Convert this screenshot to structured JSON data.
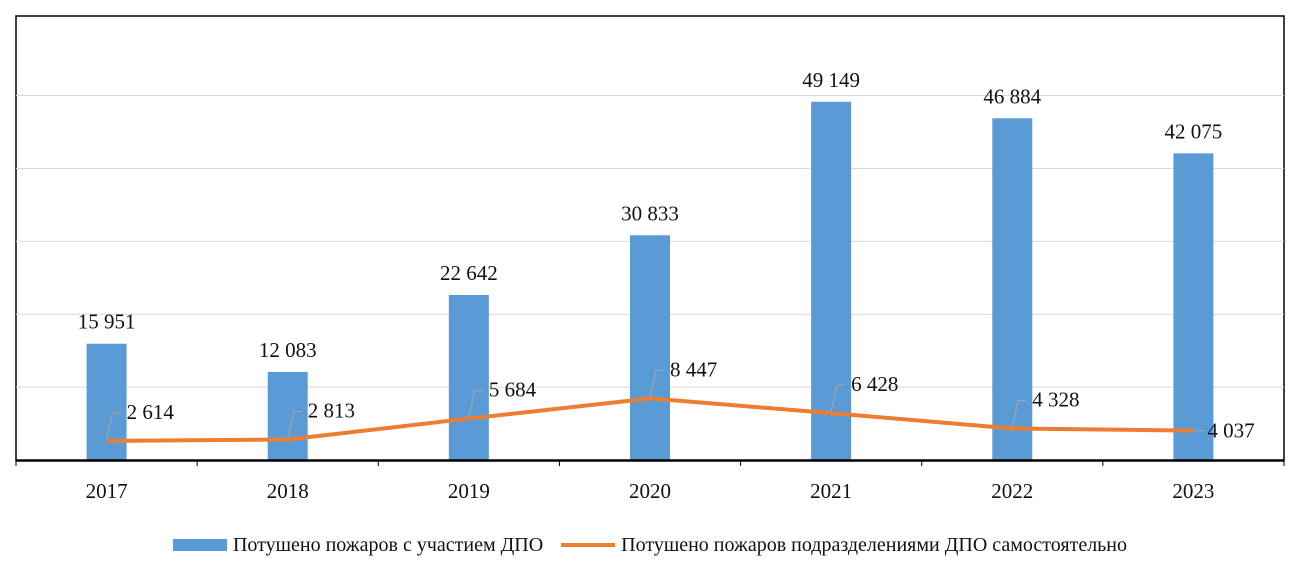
{
  "chart_data": {
    "type": "bar",
    "categories": [
      "2017",
      "2018",
      "2019",
      "2020",
      "2021",
      "2022",
      "2023"
    ],
    "series": [
      {
        "name": "Потушено пожаров с участием ДПО",
        "kind": "bar",
        "color": "#5B9BD5",
        "values": [
          15951,
          12083,
          22642,
          30833,
          49149,
          46884,
          42075
        ],
        "labels": [
          "15 951",
          "12 083",
          "22 642",
          "30 833",
          "49 149",
          "46 884",
          "42 075"
        ]
      },
      {
        "name": "Потушено пожаров подразделениями ДПО самостоятельно",
        "kind": "line",
        "color": "#ED7D31",
        "values": [
          2614,
          2813,
          5684,
          8447,
          6428,
          4328,
          4037
        ],
        "labels": [
          "2 614",
          "2 813",
          "5 684",
          "8 447",
          "6 428",
          "4 328",
          "4 037"
        ]
      }
    ],
    "ylim": [
      0,
      60000
    ],
    "y_gridlines": [
      10000,
      20000,
      30000,
      40000,
      50000
    ],
    "y_tick_labels_shown": false,
    "grid": true,
    "legend_position": "bottom"
  }
}
